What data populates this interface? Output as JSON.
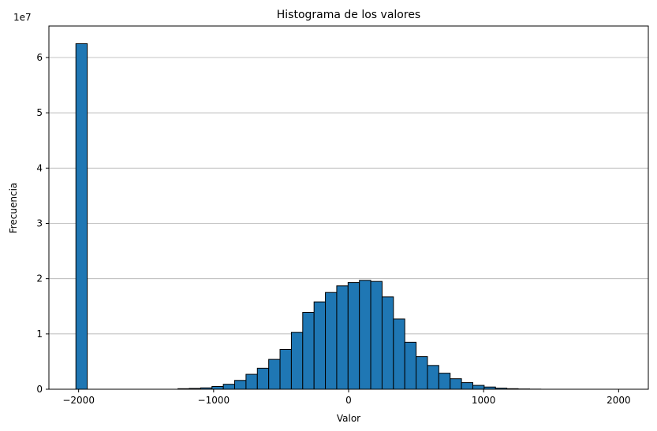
{
  "chart_data": {
    "type": "bar",
    "title": "Histograma de los valores",
    "xlabel": "Valor",
    "ylabel": "Frecuencia",
    "y_offset_label": "1e7",
    "xlim": [
      -2220,
      2220
    ],
    "ylim": [
      0,
      65700000
    ],
    "x_ticks": [
      -2000,
      -1000,
      0,
      1000,
      2000
    ],
    "x_tick_labels": [
      "−2000",
      "−1000",
      "0",
      "1000",
      "2000"
    ],
    "y_ticks": [
      0,
      10000000,
      20000000,
      30000000,
      40000000,
      50000000,
      60000000
    ],
    "y_tick_labels": [
      "0",
      "1",
      "2",
      "3",
      "4",
      "5",
      "6"
    ],
    "grid": "y-only",
    "bar_color": "#1f77b4",
    "edge_color": "#000000",
    "bin_width": 84,
    "bins_start": [
      -2020,
      -1936,
      -1852,
      -1768,
      -1684,
      -1600,
      -1516,
      -1432,
      -1348,
      -1264,
      -1180,
      -1096,
      -1012,
      -928,
      -844,
      -760,
      -676,
      -592,
      -508,
      -424,
      -340,
      -256,
      -172,
      -88,
      -4,
      80,
      164,
      248,
      332,
      416,
      500,
      584,
      668,
      752,
      836,
      920,
      1004,
      1088,
      1172,
      1256,
      1340,
      1424,
      1508,
      1592,
      1676,
      1760,
      1844,
      1928,
      2012,
      2096
    ],
    "values": [
      62500000,
      0,
      0,
      0,
      0,
      0,
      0,
      0,
      0,
      100000,
      150000,
      250000,
      500000,
      900000,
      1600000,
      2700000,
      3800000,
      5400000,
      7200000,
      10300000,
      13900000,
      15800000,
      17500000,
      18700000,
      19300000,
      19700000,
      19500000,
      16700000,
      12700000,
      8500000,
      5900000,
      4300000,
      2900000,
      1900000,
      1200000,
      700000,
      400000,
      200000,
      100000,
      50000,
      20000,
      0,
      0,
      0,
      0,
      0,
      0,
      0,
      0,
      0
    ]
  }
}
